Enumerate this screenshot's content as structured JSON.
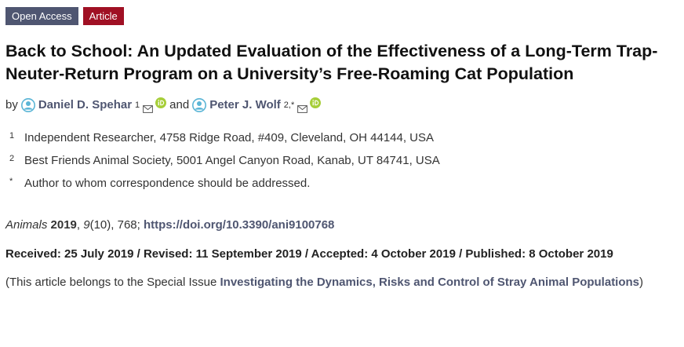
{
  "badges": {
    "open_access": "Open Access",
    "article": "Article"
  },
  "title": "Back to School: An Updated Evaluation of the Effectiveness of a Long-Term Trap-Neuter-Return Program on a University’s Free-Roaming Cat Population",
  "authors": {
    "by": "by",
    "and": "and",
    "list": [
      {
        "name": "Daniel D. Spehar",
        "sup": "1"
      },
      {
        "name": "Peter J. Wolf",
        "sup": "2,*"
      }
    ]
  },
  "affiliations": [
    {
      "num": "1",
      "text": "Independent Researcher, 4758 Ridge Road, #409, Cleveland, OH 44144, USA"
    },
    {
      "num": "2",
      "text": "Best Friends Animal Society, 5001 Angel Canyon Road, Kanab, UT 84741, USA"
    },
    {
      "num": "*",
      "text": "Author to whom correspondence should be addressed."
    }
  ],
  "citation": {
    "journal": "Animals",
    "year": "2019",
    "volume": "9",
    "rest": "(10), 768; ",
    "doi": "https://doi.org/10.3390/ani9100768"
  },
  "dates": "Received: 25 July 2019 / Revised: 11 September 2019 / Accepted: 4 October 2019 / Published: 8 October 2019",
  "special_issue": {
    "prefix": "(This article belongs to the Special Issue ",
    "link": "Investigating the Dynamics, Risks and Control of Stray Animal Populations",
    "suffix": ")"
  },
  "colors": {
    "badge_open_access": "#4f5671",
    "badge_article": "#a01024",
    "author_icon": "#5bb5d6",
    "orcid": "#a6ce39",
    "link": "#4f5671"
  },
  "icons": {
    "author": "person-circle-icon",
    "mail": "envelope-icon",
    "orcid": "orcid-icon"
  }
}
